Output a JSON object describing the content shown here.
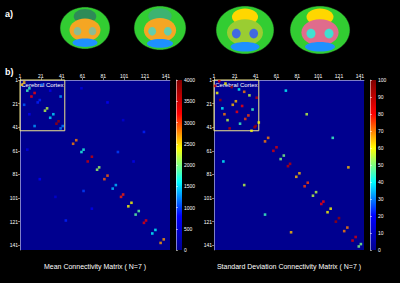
{
  "panel_labels": [
    "a)",
    "b)"
  ],
  "chart_data": [
    {
      "type": "heatmap",
      "title": "Mean Connectivity Matrix ( N=7 )",
      "xlim": [
        1,
        145
      ],
      "ylim": [
        1,
        145
      ],
      "xticks": [
        1,
        21,
        41,
        61,
        81,
        101,
        121,
        141
      ],
      "yticks": [
        1,
        21,
        41,
        61,
        81,
        101,
        121,
        141
      ],
      "colorbar": {
        "range": [
          0,
          4000
        ],
        "ticks": [
          0,
          500,
          1000,
          1500,
          2000,
          2500,
          3000,
          3500,
          4000
        ]
      },
      "region": {
        "label": "Cerebral Cortex",
        "start": 1,
        "end": 44
      },
      "cells": [
        [
          3,
          5,
          2600
        ],
        [
          5,
          3,
          2600
        ],
        [
          8,
          10,
          1800
        ],
        [
          10,
          8,
          1800
        ],
        [
          12,
          15,
          3200
        ],
        [
          15,
          12,
          3200
        ],
        [
          18,
          20,
          900
        ],
        [
          20,
          18,
          900
        ],
        [
          25,
          27,
          2200
        ],
        [
          27,
          25,
          2200
        ],
        [
          30,
          33,
          1500
        ],
        [
          33,
          30,
          1500
        ],
        [
          36,
          38,
          3800
        ],
        [
          38,
          36,
          3800
        ],
        [
          40,
          42,
          1200
        ],
        [
          42,
          40,
          1200
        ],
        [
          52,
          55,
          2800
        ],
        [
          55,
          52,
          2800
        ],
        [
          60,
          62,
          1700
        ],
        [
          62,
          60,
          1700
        ],
        [
          66,
          70,
          3500
        ],
        [
          70,
          66,
          3500
        ],
        [
          75,
          77,
          2100
        ],
        [
          77,
          75,
          2100
        ],
        [
          82,
          85,
          2900
        ],
        [
          85,
          82,
          2900
        ],
        [
          90,
          93,
          1400
        ],
        [
          93,
          90,
          1400
        ],
        [
          98,
          100,
          3100
        ],
        [
          100,
          98,
          3100
        ],
        [
          105,
          108,
          2400
        ],
        [
          108,
          105,
          2400
        ],
        [
          112,
          115,
          1900
        ],
        [
          115,
          112,
          1900
        ],
        [
          120,
          122,
          3300
        ],
        [
          122,
          120,
          3300
        ],
        [
          128,
          131,
          1600
        ],
        [
          131,
          128,
          1600
        ],
        [
          136,
          139,
          2700
        ],
        [
          139,
          136,
          2700
        ],
        [
          5,
          22,
          1100
        ],
        [
          22,
          5,
          1100
        ],
        [
          10,
          30,
          700
        ],
        [
          30,
          10,
          700
        ],
        [
          15,
          40,
          1300
        ],
        [
          40,
          15,
          1300
        ],
        [
          8,
          60,
          600
        ],
        [
          60,
          8,
          600
        ],
        [
          20,
          85,
          800
        ],
        [
          85,
          20,
          800
        ],
        [
          35,
          100,
          500
        ],
        [
          100,
          35,
          500
        ],
        [
          45,
          120,
          900
        ],
        [
          120,
          45,
          900
        ],
        [
          70,
          110,
          700
        ],
        [
          110,
          70,
          700
        ],
        [
          62,
          95,
          1000
        ],
        [
          95,
          62,
          1000
        ]
      ]
    },
    {
      "type": "heatmap",
      "title": "Standard Deviation Connectivity Matrix ( N=7 )",
      "xlim": [
        1,
        145
      ],
      "ylim": [
        1,
        145
      ],
      "xticks": [
        1,
        21,
        41,
        61,
        81,
        101,
        121,
        141
      ],
      "yticks": [
        1,
        21,
        41,
        61,
        81,
        101,
        121,
        141
      ],
      "colorbar": {
        "range": [
          0,
          100
        ],
        "ticks": [
          0,
          10,
          20,
          30,
          40,
          50,
          60,
          70,
          80,
          90,
          100
        ]
      },
      "region": {
        "label": "Cerebral Cortex",
        "start": 1,
        "end": 44
      },
      "cells": [
        [
          2,
          6,
          85
        ],
        [
          6,
          2,
          85
        ],
        [
          4,
          12,
          60
        ],
        [
          12,
          4,
          60
        ],
        [
          7,
          18,
          95
        ],
        [
          18,
          7,
          95
        ],
        [
          9,
          25,
          40
        ],
        [
          25,
          9,
          40
        ],
        [
          11,
          30,
          70
        ],
        [
          30,
          11,
          70
        ],
        [
          14,
          35,
          55
        ],
        [
          35,
          14,
          55
        ],
        [
          16,
          42,
          90
        ],
        [
          42,
          16,
          90
        ],
        [
          19,
          22,
          65
        ],
        [
          22,
          19,
          65
        ],
        [
          23,
          28,
          80
        ],
        [
          28,
          23,
          80
        ],
        [
          26,
          38,
          45
        ],
        [
          38,
          26,
          45
        ],
        [
          31,
          34,
          75
        ],
        [
          34,
          31,
          75
        ],
        [
          37,
          44,
          60
        ],
        [
          44,
          37,
          60
        ],
        [
          40,
          41,
          95
        ],
        [
          41,
          40,
          95
        ],
        [
          50,
          53,
          70
        ],
        [
          53,
          50,
          70
        ],
        [
          58,
          61,
          85
        ],
        [
          61,
          58,
          85
        ],
        [
          65,
          68,
          50
        ],
        [
          68,
          65,
          50
        ],
        [
          72,
          74,
          90
        ],
        [
          74,
          72,
          90
        ],
        [
          80,
          83,
          65
        ],
        [
          83,
          80,
          65
        ],
        [
          88,
          91,
          75
        ],
        [
          91,
          88,
          75
        ],
        [
          96,
          99,
          55
        ],
        [
          99,
          96,
          55
        ],
        [
          104,
          106,
          80
        ],
        [
          106,
          104,
          80
        ],
        [
          110,
          113,
          60
        ],
        [
          113,
          110,
          60
        ],
        [
          118,
          121,
          95
        ],
        [
          121,
          118,
          95
        ],
        [
          126,
          129,
          70
        ],
        [
          129,
          126,
          70
        ],
        [
          134,
          137,
          85
        ],
        [
          137,
          134,
          85
        ],
        [
          140,
          142,
          50
        ],
        [
          142,
          140,
          50
        ],
        [
          10,
          70,
          40
        ],
        [
          70,
          10,
          40
        ],
        [
          30,
          90,
          55
        ],
        [
          90,
          30,
          55
        ],
        [
          50,
          115,
          45
        ],
        [
          115,
          50,
          45
        ],
        [
          75,
          130,
          65
        ],
        [
          130,
          75,
          65
        ]
      ]
    }
  ]
}
